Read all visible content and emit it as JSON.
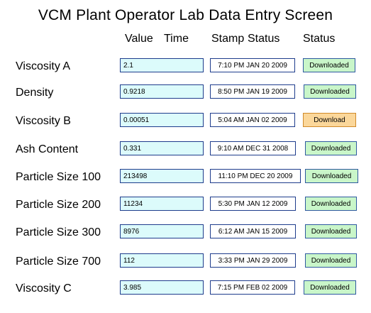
{
  "title": "VCM Plant Operator Lab Data Entry Screen",
  "headers": {
    "value": "Value",
    "time_stamp": "Time Stamp",
    "status": "Status",
    "status_col": "Status"
  },
  "rows": [
    {
      "label": "Viscosity A",
      "value": "2.1",
      "stamp": "7:10 PM JAN 20 2009",
      "status": "Downloaded"
    },
    {
      "label": "Density",
      "value": "0.9218",
      "stamp": "8:50 PM JAN 19 2009",
      "status": "Downloaded"
    },
    {
      "label": "Viscosity B",
      "value": "0.00051",
      "stamp": "5:04 AM JAN 02 2009",
      "status": "Download"
    },
    {
      "label": "Ash Content",
      "value": "0.331",
      "stamp": "9:10 AM DEC 31 2008",
      "status": "Downloaded"
    },
    {
      "label": "Particle Size 100",
      "value": "213498",
      "stamp": "11:10 PM DEC 20 2009",
      "status": "Downloaded"
    },
    {
      "label": "Particle Size 200",
      "value": "11234",
      "stamp": "5:30 PM JAN 12 2009",
      "status": "Downloaded"
    },
    {
      "label": "Particle Size 300",
      "value": "8976",
      "stamp": "6:12 AM JAN 15 2009",
      "status": "Downloaded"
    },
    {
      "label": "Particle Size 700",
      "value": "112",
      "stamp": "3:33 PM JAN 29 2009",
      "status": "Downloaded"
    },
    {
      "label": "Viscosity C",
      "value": "3.985",
      "stamp": "7:15 PM FEB 02 2009",
      "status": "Downloaded"
    }
  ],
  "colors": {
    "value_bg": "#dcfbfb",
    "field_border": "#1e3c8c",
    "downloaded_bg": "#c9f6c9",
    "download_bg": "#fbd79a"
  }
}
